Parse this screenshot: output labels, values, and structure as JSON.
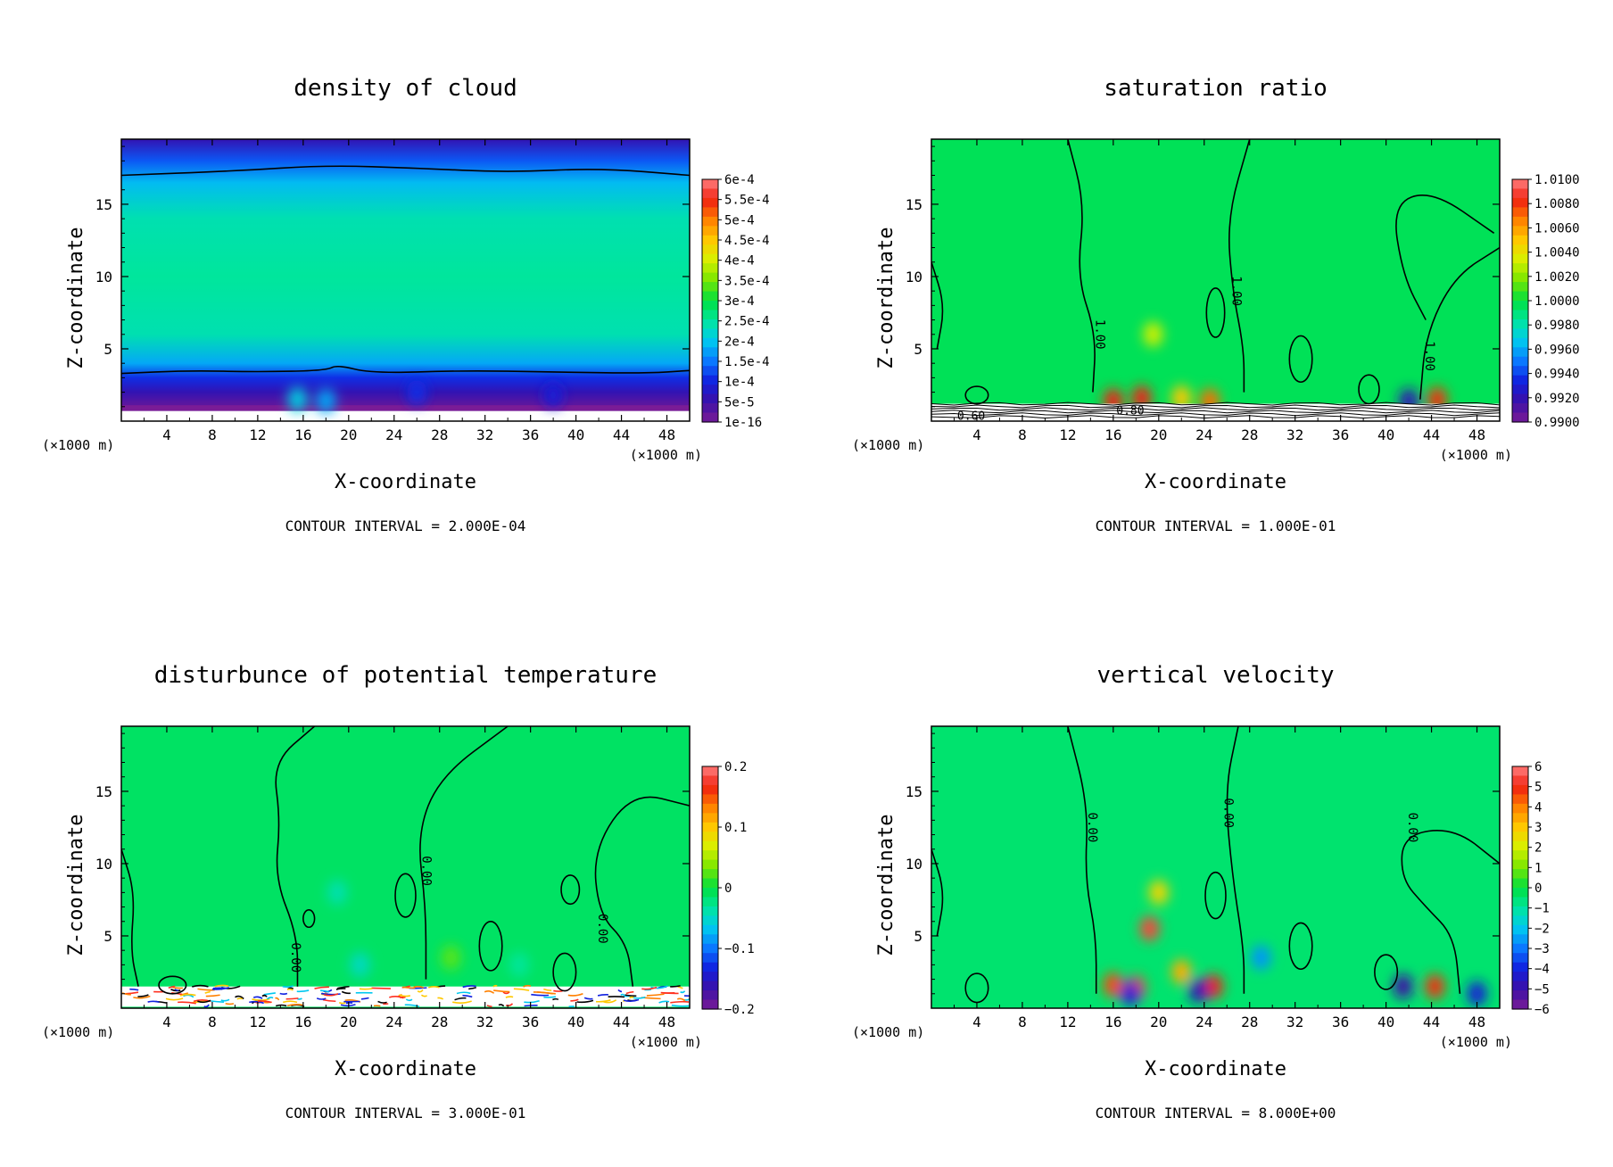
{
  "figure": {
    "x_unit_left": "(×1000 m)",
    "x_unit_right": "(×1000 m)",
    "x_ticks": [
      "4",
      "8",
      "12",
      "16",
      "20",
      "24",
      "28",
      "32",
      "36",
      "40",
      "44",
      "48"
    ],
    "z_ticks": [
      "5",
      "10",
      "15"
    ]
  },
  "chart_data": [
    {
      "type": "heatmap",
      "title": "density of cloud",
      "xlabel": "X-coordinate",
      "ylabel": "Z-coordinate",
      "xlim": [
        0,
        50
      ],
      "ylim": [
        0,
        19.5
      ],
      "contour_interval": "CONTOUR INTERVAL = 2.000E-04",
      "colorbar_labels": [
        "6e-4",
        "5.5e-4",
        "5e-4",
        "4.5e-4",
        "4e-4",
        "3.5e-4",
        "3e-4",
        "2.5e-4",
        "2e-4",
        "1.5e-4",
        "1e-4",
        "5e-5",
        "1e-16"
      ],
      "field_layers": [
        {
          "z": 19.5,
          "level": 0.1
        },
        {
          "z": 18.0,
          "level": 0.22
        },
        {
          "z": 16.5,
          "level": 0.32
        },
        {
          "z": 14.0,
          "level": 0.4
        },
        {
          "z": 10.0,
          "level": 0.42
        },
        {
          "z": 6.0,
          "level": 0.4
        },
        {
          "z": 4.0,
          "level": 0.3
        },
        {
          "z": 3.0,
          "level": 0.18
        },
        {
          "z": 2.0,
          "level": 0.1
        },
        {
          "z": 1.2,
          "level": 0.04
        }
      ],
      "contours": [
        {
          "label": "",
          "points": [
            [
              0,
              17.0
            ],
            [
              10,
              17.3
            ],
            [
              18,
              17.7
            ],
            [
              26,
              17.5
            ],
            [
              34,
              17.2
            ],
            [
              42,
              17.5
            ],
            [
              50,
              17.0
            ]
          ]
        },
        {
          "label": "",
          "points": [
            [
              0,
              3.3
            ],
            [
              6,
              3.5
            ],
            [
              12,
              3.4
            ],
            [
              18,
              3.5
            ],
            [
              19,
              3.9
            ],
            [
              22,
              3.3
            ],
            [
              30,
              3.5
            ],
            [
              38,
              3.4
            ],
            [
              46,
              3.3
            ],
            [
              50,
              3.5
            ]
          ]
        }
      ],
      "hotspots": [
        {
          "x": 15.5,
          "z": 1.5,
          "level": 0.35
        },
        {
          "x": 18,
          "z": 1.4,
          "level": 0.3
        },
        {
          "x": 26,
          "z": 2.0,
          "level": 0.18
        },
        {
          "x": 38,
          "z": 1.8,
          "level": 0.15
        }
      ]
    },
    {
      "type": "heatmap",
      "title": "saturation ratio",
      "xlabel": "X-coordinate",
      "ylabel": "Z-coordinate",
      "xlim": [
        0,
        50
      ],
      "ylim": [
        0,
        19.5
      ],
      "contour_interval": "CONTOUR INTERVAL = 1.000E-01",
      "colorbar_labels": [
        "1.0100",
        "1.0080",
        "1.0060",
        "1.0040",
        "1.0020",
        "1.0000",
        "0.9980",
        "0.9960",
        "0.9940",
        "0.9920",
        "0.9900"
      ],
      "base_level": 0.48,
      "contours": [
        {
          "label": "1.00",
          "label_at": [
            14.5,
            6
          ],
          "points": [
            [
              12,
              19.5
            ],
            [
              13.5,
              15
            ],
            [
              12.8,
              10
            ],
            [
              14.5,
              6
            ],
            [
              14.2,
              2
            ]
          ]
        },
        {
          "label": "1.00",
          "label_at": [
            26.5,
            9
          ],
          "points": [
            [
              28,
              19.5
            ],
            [
              26,
              14
            ],
            [
              26.5,
              9
            ],
            [
              27.5,
              5
            ],
            [
              27.5,
              2
            ]
          ]
        },
        {
          "label": "1.00",
          "label_at": [
            43.5,
            4.5
          ],
          "points": [
            [
              43,
              1.5
            ],
            [
              43.5,
              6
            ],
            [
              46,
              10
            ],
            [
              50,
              12
            ]
          ]
        },
        {
          "label": "",
          "points": [
            [
              0,
              11
            ],
            [
              1.2,
              8
            ],
            [
              0.5,
              5
            ]
          ]
        },
        {
          "label": "",
          "points": [
            [
              49.5,
              13
            ],
            [
              44,
              16
            ],
            [
              40.5,
              15
            ],
            [
              41.5,
              10
            ],
            [
              43.5,
              7
            ]
          ]
        }
      ],
      "loops": [
        {
          "cx": 25,
          "cz": 7.5,
          "rx": 0.8,
          "rz": 1.7
        },
        {
          "cx": 32.5,
          "cz": 4.3,
          "rx": 1.0,
          "rz": 1.6
        },
        {
          "cx": 38.5,
          "cz": 2.2,
          "rx": 0.9,
          "rz": 1.0
        },
        {
          "cx": 4,
          "cz": 1.8,
          "rx": 1.0,
          "rz": 0.6
        }
      ],
      "surface_lines": true,
      "surface_labels": [
        "0.60",
        "0.80"
      ],
      "hotspots": [
        {
          "x": 16,
          "z": 1.4,
          "level": 0.92
        },
        {
          "x": 18.5,
          "z": 1.6,
          "level": 0.92
        },
        {
          "x": 19.5,
          "z": 6,
          "level": 0.66
        },
        {
          "x": 22,
          "z": 1.6,
          "level": 0.75
        },
        {
          "x": 24.5,
          "z": 1.4,
          "level": 0.85
        },
        {
          "x": 42,
          "z": 1.4,
          "level": 0.1
        },
        {
          "x": 44.5,
          "z": 1.5,
          "level": 0.9
        }
      ]
    },
    {
      "type": "heatmap",
      "title": "disturbunce of potential temperature",
      "xlabel": "X-coordinate",
      "ylabel": "Z-coordinate",
      "xlim": [
        0,
        50
      ],
      "ylim": [
        0,
        19.5
      ],
      "contour_interval": "CONTOUR INTERVAL = 3.000E-01",
      "colorbar_labels": [
        "0.2",
        "0.1",
        "0",
        "−0.1",
        "−0.2"
      ],
      "colorbar_label_positions": [
        0,
        0.25,
        0.5,
        0.75,
        1
      ],
      "base_level": 0.47,
      "contours": [
        {
          "label": "",
          "points": [
            [
              0,
              11
            ],
            [
              1.2,
              8
            ],
            [
              0.8,
              4
            ],
            [
              1.5,
              1.5
            ]
          ]
        },
        {
          "label": "0.00",
          "label_at": [
            15,
            3.5
          ],
          "points": [
            [
              17,
              19.5
            ],
            [
              13.3,
              17
            ],
            [
              14,
              13
            ],
            [
              13.5,
              9
            ],
            [
              15.5,
              5
            ],
            [
              15.5,
              1.5
            ]
          ]
        },
        {
          "label": "0.00",
          "label_at": [
            26.5,
            9.5
          ],
          "points": [
            [
              34,
              19.5
            ],
            [
              28,
              16
            ],
            [
              26,
              12
            ],
            [
              26.8,
              7
            ],
            [
              26.8,
              2
            ]
          ]
        },
        {
          "label": "0.00",
          "label_at": [
            42,
            5.5
          ],
          "points": [
            [
              50,
              14
            ],
            [
              45,
              15
            ],
            [
              41.5,
              11
            ],
            [
              42,
              6.5
            ],
            [
              44.5,
              4.5
            ],
            [
              45,
              1.5
            ]
          ]
        }
      ],
      "loops": [
        {
          "cx": 16.5,
          "cz": 6.2,
          "rx": 0.5,
          "rz": 0.6
        },
        {
          "cx": 25,
          "cz": 7.8,
          "rx": 0.9,
          "rz": 1.5
        },
        {
          "cx": 39.5,
          "cz": 8.2,
          "rx": 0.8,
          "rz": 1.0
        },
        {
          "cx": 32.5,
          "cz": 4.3,
          "rx": 1.0,
          "rz": 1.7
        },
        {
          "cx": 39,
          "cz": 2.5,
          "rx": 1.0,
          "rz": 1.3
        },
        {
          "cx": 4.5,
          "cz": 1.6,
          "rx": 1.2,
          "rz": 0.6
        }
      ],
      "surface_noise": true,
      "hotspots": [
        {
          "x": 19,
          "z": 8,
          "level": 0.4
        },
        {
          "x": 21,
          "z": 3,
          "level": 0.38
        },
        {
          "x": 29,
          "z": 3.5,
          "level": 0.56
        },
        {
          "x": 35,
          "z": 3,
          "level": 0.42
        }
      ]
    },
    {
      "type": "heatmap",
      "title": "vertical velocity",
      "xlabel": "X-coordinate",
      "ylabel": "Z-coordinate",
      "xlim": [
        0,
        50
      ],
      "ylim": [
        0,
        19.5
      ],
      "contour_interval": "CONTOUR INTERVAL = 8.000E+00",
      "colorbar_labels": [
        "6",
        "5",
        "4",
        "3",
        "2",
        "1",
        "0",
        "−1",
        "−2",
        "−3",
        "−4",
        "−5",
        "−6"
      ],
      "base_level": 0.46,
      "contours": [
        {
          "label": "0.00",
          "label_at": [
            13.8,
            12.5
          ],
          "points": [
            [
              12,
              19.5
            ],
            [
              13.8,
              14
            ],
            [
              13.5,
              9
            ],
            [
              14.5,
              5
            ],
            [
              14.5,
              1
            ]
          ]
        },
        {
          "label": "0.00",
          "label_at": [
            25.8,
            13.5
          ],
          "points": [
            [
              27,
              19.5
            ],
            [
              25.8,
              15
            ],
            [
              26.5,
              9
            ],
            [
              27.5,
              4
            ],
            [
              27.5,
              1
            ]
          ]
        },
        {
          "label": "0.00",
          "label_at": [
            42,
            12.5
          ],
          "points": [
            [
              50,
              10
            ],
            [
              46,
              12.5
            ],
            [
              41.5,
              12
            ],
            [
              41.3,
              9
            ],
            [
              43.5,
              7
            ],
            [
              46,
              5
            ],
            [
              46.5,
              1
            ]
          ]
        },
        {
          "label": "",
          "points": [
            [
              0,
              11
            ],
            [
              1.2,
              8
            ],
            [
              0.5,
              5
            ]
          ]
        }
      ],
      "loops": [
        {
          "cx": 25,
          "cz": 7.8,
          "rx": 0.9,
          "rz": 1.6
        },
        {
          "cx": 32.5,
          "cz": 4.3,
          "rx": 1.0,
          "rz": 1.6
        },
        {
          "cx": 40,
          "cz": 2.5,
          "rx": 1.0,
          "rz": 1.2
        },
        {
          "cx": 4,
          "cz": 1.4,
          "rx": 1.0,
          "rz": 1.0
        }
      ],
      "hotspots": [
        {
          "x": 19.2,
          "z": 5.5,
          "level": 0.95
        },
        {
          "x": 20,
          "z": 8,
          "level": 0.72
        },
        {
          "x": 16,
          "z": 1.6,
          "level": 0.88
        },
        {
          "x": 18,
          "z": 1.4,
          "level": 0.88
        },
        {
          "x": 22,
          "z": 2.5,
          "level": 0.78
        },
        {
          "x": 24.8,
          "z": 1.5,
          "level": 0.92
        },
        {
          "x": 23.5,
          "z": 1.2,
          "level": 0.1
        },
        {
          "x": 17.5,
          "z": 1,
          "level": 0.15
        },
        {
          "x": 41.5,
          "z": 1.5,
          "level": 0.08
        },
        {
          "x": 44.3,
          "z": 1.5,
          "level": 0.9
        },
        {
          "x": 29,
          "z": 3.5,
          "level": 0.28
        },
        {
          "x": 48,
          "z": 1,
          "level": 0.15
        }
      ]
    }
  ]
}
